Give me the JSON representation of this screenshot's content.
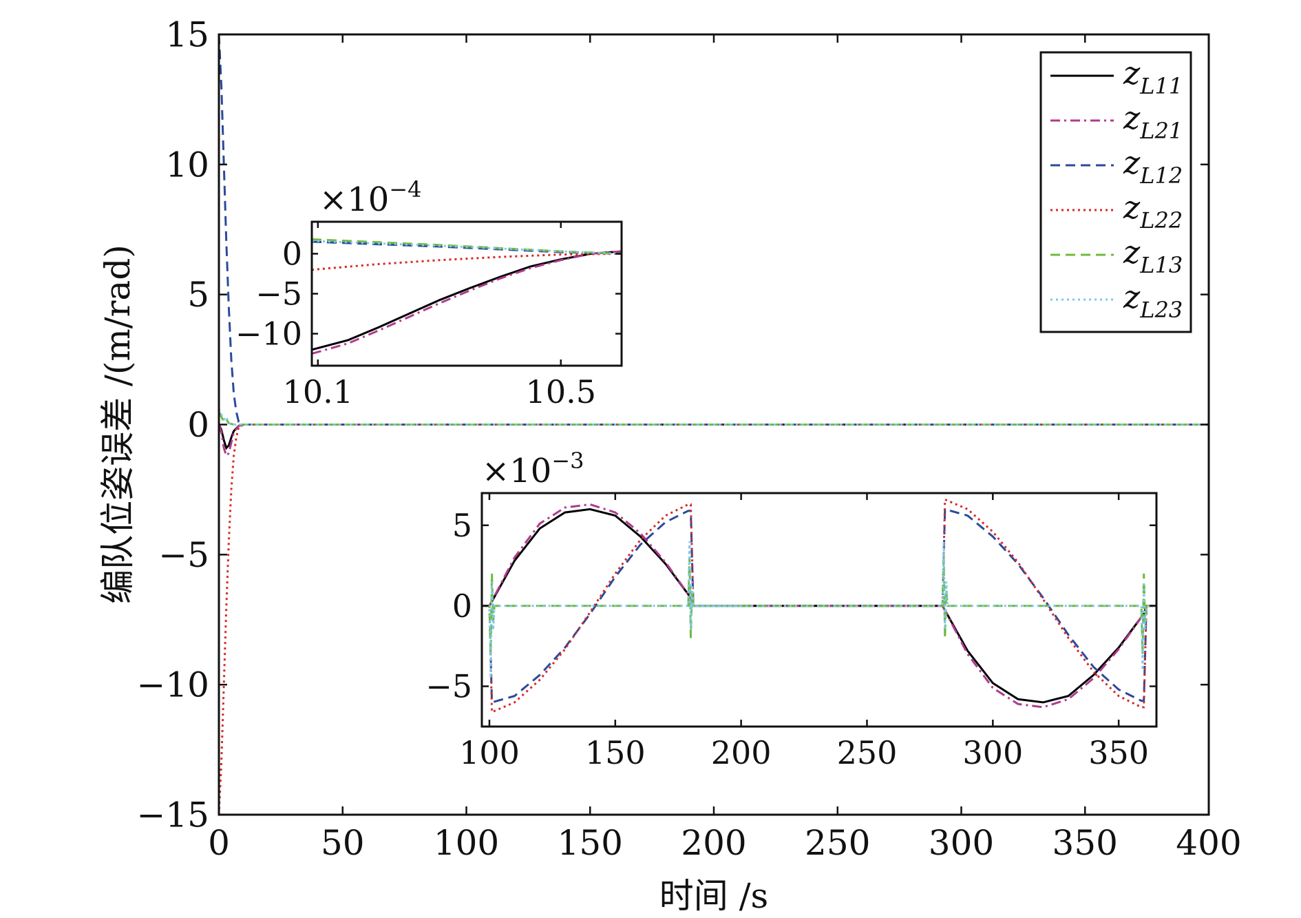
{
  "chart_data": [
    {
      "type": "line",
      "title": "",
      "xlabel": "时间 /s",
      "ylabel": "编队位姿误差 /(m/rad)",
      "xlim": [
        0,
        400
      ],
      "ylim": [
        -15,
        15
      ],
      "xticks": [
        0,
        50,
        100,
        150,
        200,
        250,
        300,
        350,
        400
      ],
      "yticks": [
        -15,
        -10,
        -5,
        0,
        5,
        10,
        15
      ],
      "xtick_labels": [
        "0",
        "50",
        "100",
        "150",
        "200",
        "250",
        "300",
        "350",
        "400"
      ],
      "ytick_labels": [
        "−15",
        "−10",
        "−5",
        "0",
        "5",
        "10",
        "15"
      ],
      "grid": false,
      "legend_position": "top-right",
      "series": [
        {
          "name": "z_L11",
          "label_main": "z",
          "label_sub": "L11",
          "color": "#000000",
          "dash": "solid",
          "x": [
            0,
            1,
            2,
            3,
            4,
            5,
            6,
            8,
            10,
            400
          ],
          "y": [
            0,
            -0.2,
            -0.6,
            -0.9,
            -0.8,
            -0.5,
            -0.25,
            -0.05,
            0,
            0
          ]
        },
        {
          "name": "z_L21",
          "label_main": "z",
          "label_sub": "L21",
          "color": "#b03a8e",
          "dash": "dashdot",
          "x": [
            0,
            1,
            2,
            3,
            4,
            5,
            6,
            8,
            10,
            400
          ],
          "y": [
            0,
            -0.3,
            -0.9,
            -1.2,
            -1.1,
            -0.7,
            -0.3,
            -0.05,
            0,
            0
          ]
        },
        {
          "name": "z_L12",
          "label_main": "z",
          "label_sub": "L12",
          "color": "#2b4a9b",
          "dash": "dashed",
          "x": [
            0,
            1,
            2,
            3,
            4,
            5,
            6,
            7,
            8,
            10,
            400
          ],
          "y": [
            15,
            13,
            10,
            7,
            4.5,
            2.5,
            1.2,
            0.5,
            0.1,
            0,
            0
          ]
        },
        {
          "name": "z_L22",
          "label_main": "z",
          "label_sub": "L22",
          "color": "#d42a2a",
          "dash": "dotted",
          "x": [
            0,
            1,
            2,
            3,
            4,
            5,
            6,
            7,
            8,
            10,
            400
          ],
          "y": [
            -15,
            -13,
            -10,
            -7,
            -4.5,
            -2.5,
            -1.2,
            -0.5,
            -0.1,
            0,
            0
          ]
        },
        {
          "name": "z_L13",
          "label_main": "z",
          "label_sub": "L13",
          "color": "#6fba3c",
          "dash": "dashed",
          "x": [
            0,
            1,
            2,
            3,
            4,
            6,
            400
          ],
          "y": [
            0.5,
            0.3,
            0.1,
            0.2,
            0.05,
            0,
            0
          ]
        },
        {
          "name": "z_L23",
          "label_main": "z",
          "label_sub": "L23",
          "color": "#7fc8e8",
          "dash": "dotted",
          "x": [
            0,
            1,
            2,
            3,
            4,
            6,
            400
          ],
          "y": [
            0.6,
            0.4,
            0.2,
            0.3,
            0.05,
            0,
            0
          ]
        }
      ]
    },
    {
      "type": "line",
      "title": "",
      "inset": "zoom-1",
      "xlim": [
        10.09,
        10.6
      ],
      "ylim": [
        -14,
        4
      ],
      "scale_label": "×10",
      "scale_exp": "−4",
      "xticks": [
        10.1,
        10.5
      ],
      "yticks": [
        -10,
        -5,
        0
      ],
      "xtick_labels": [
        "10.1",
        "10.5"
      ],
      "ytick_labels": [
        "−10",
        "−5",
        "0"
      ],
      "series": [
        {
          "name": "z_L11",
          "x": [
            10.09,
            10.15,
            10.2,
            10.25,
            10.3,
            10.35,
            10.4,
            10.45,
            10.5,
            10.55,
            10.6
          ],
          "y": [
            -12,
            -10.8,
            -9.2,
            -7.5,
            -5.8,
            -4.3,
            -2.9,
            -1.6,
            -0.7,
            0,
            0.3
          ]
        },
        {
          "name": "z_L21",
          "x": [
            10.09,
            10.15,
            10.2,
            10.25,
            10.3,
            10.35,
            10.4,
            10.45,
            10.5,
            10.55,
            10.6
          ],
          "y": [
            -12.5,
            -11.2,
            -9.6,
            -7.9,
            -6.2,
            -4.6,
            -3.1,
            -1.8,
            -0.8,
            0,
            0.3
          ]
        },
        {
          "name": "z_L12",
          "x": [
            10.09,
            10.3,
            10.5,
            10.6
          ],
          "y": [
            1.5,
            0.9,
            0.2,
            0
          ]
        },
        {
          "name": "z_L22",
          "x": [
            10.09,
            10.2,
            10.3,
            10.4,
            10.5,
            10.6
          ],
          "y": [
            -2,
            -1.3,
            -0.8,
            -0.4,
            -0.1,
            0
          ]
        },
        {
          "name": "z_L13",
          "x": [
            10.09,
            10.3,
            10.5,
            10.6
          ],
          "y": [
            1.8,
            1.1,
            0.3,
            0
          ]
        },
        {
          "name": "z_L23",
          "x": [
            10.09,
            10.3,
            10.5,
            10.6
          ],
          "y": [
            1.6,
            1.0,
            0.3,
            0
          ]
        }
      ]
    },
    {
      "type": "line",
      "title": "",
      "inset": "zoom-2",
      "xlim": [
        97,
        365
      ],
      "ylim": [
        -7.5,
        7
      ],
      "scale_label": "×10",
      "scale_exp": "−3",
      "xticks": [
        100,
        150,
        200,
        250,
        300,
        350
      ],
      "yticks": [
        -5,
        0,
        5
      ],
      "xtick_labels": [
        "100",
        "150",
        "200",
        "250",
        "300",
        "350"
      ],
      "ytick_labels": [
        "−5",
        "0",
        "5"
      ],
      "series": [
        {
          "name": "z_L11",
          "x": [
            97,
            100,
            110,
            120,
            130,
            140,
            150,
            160,
            170,
            180,
            181,
            200,
            250,
            280,
            290,
            300,
            310,
            320,
            330,
            340,
            350,
            360,
            361,
            365
          ],
          "y": [
            0,
            0,
            2.8,
            4.8,
            5.8,
            6.0,
            5.6,
            4.3,
            2.6,
            0.5,
            0,
            0,
            0,
            0,
            -2.8,
            -4.8,
            -5.8,
            -6.0,
            -5.6,
            -4.3,
            -2.6,
            -0.5,
            0,
            0
          ]
        },
        {
          "name": "z_L21",
          "x": [
            97,
            100,
            110,
            120,
            130,
            140,
            150,
            160,
            170,
            180,
            181,
            200,
            250,
            280,
            290,
            300,
            310,
            320,
            330,
            340,
            350,
            360,
            361,
            365
          ],
          "y": [
            0,
            0,
            3.0,
            5.1,
            6.1,
            6.3,
            5.8,
            4.5,
            2.7,
            0.5,
            0,
            0,
            0,
            0,
            -3.0,
            -5.1,
            -6.1,
            -6.3,
            -5.8,
            -4.5,
            -2.7,
            -0.5,
            0,
            0
          ]
        },
        {
          "name": "z_L12",
          "x": [
            97,
            100,
            101,
            110,
            120,
            130,
            140,
            150,
            160,
            170,
            179,
            180,
            181,
            200,
            250,
            280,
            281,
            290,
            300,
            310,
            320,
            330,
            340,
            350,
            359,
            360,
            361,
            365
          ],
          "y": [
            0,
            0,
            -6.0,
            -5.6,
            -4.3,
            -2.6,
            -0.5,
            1.8,
            3.8,
            5.2,
            5.9,
            5.9,
            0,
            0,
            0,
            0,
            6.0,
            5.6,
            4.3,
            2.6,
            0.5,
            -1.8,
            -3.8,
            -5.2,
            -5.9,
            -5.9,
            0,
            0
          ]
        },
        {
          "name": "z_L22",
          "x": [
            97,
            100,
            101,
            110,
            120,
            130,
            140,
            150,
            160,
            170,
            179,
            180,
            181,
            200,
            250,
            280,
            281,
            290,
            300,
            310,
            320,
            330,
            340,
            350,
            359,
            360,
            361,
            365
          ],
          "y": [
            0,
            0,
            -6.6,
            -6.0,
            -4.6,
            -2.7,
            -0.4,
            2.0,
            4.1,
            5.6,
            6.3,
            6.3,
            0,
            0,
            0,
            0,
            6.6,
            6.0,
            4.6,
            2.7,
            0.4,
            -2.0,
            -4.1,
            -5.6,
            -6.3,
            -6.3,
            0,
            0
          ]
        },
        {
          "name": "z_L13",
          "x": [
            97,
            100,
            100.5,
            101,
            101.5,
            102,
            200,
            179,
            179.5,
            180,
            180.5,
            181,
            250,
            280,
            280.5,
            281,
            281.5,
            282,
            359,
            359.5,
            360,
            360.5,
            361,
            365
          ],
          "y": [
            0,
            0,
            -3,
            2,
            -1,
            0,
            0,
            0,
            3,
            -2,
            1,
            0,
            0,
            0,
            3,
            -2,
            1,
            0,
            0,
            -3,
            2,
            -1,
            0,
            0
          ]
        },
        {
          "name": "z_L23",
          "x": [
            97,
            100,
            100.5,
            101,
            101.5,
            102,
            200,
            179,
            179.5,
            180,
            180.5,
            181,
            250,
            280,
            280.5,
            281,
            281.5,
            282,
            359,
            359.5,
            360,
            360.5,
            361,
            365
          ],
          "y": [
            0,
            0,
            -4.5,
            1.5,
            -1.5,
            0,
            0,
            0,
            4.0,
            -1.5,
            1.5,
            0,
            0,
            0,
            4.0,
            -1.5,
            1.5,
            0,
            0,
            -4.0,
            1.5,
            -1.5,
            0,
            0
          ]
        }
      ]
    }
  ]
}
